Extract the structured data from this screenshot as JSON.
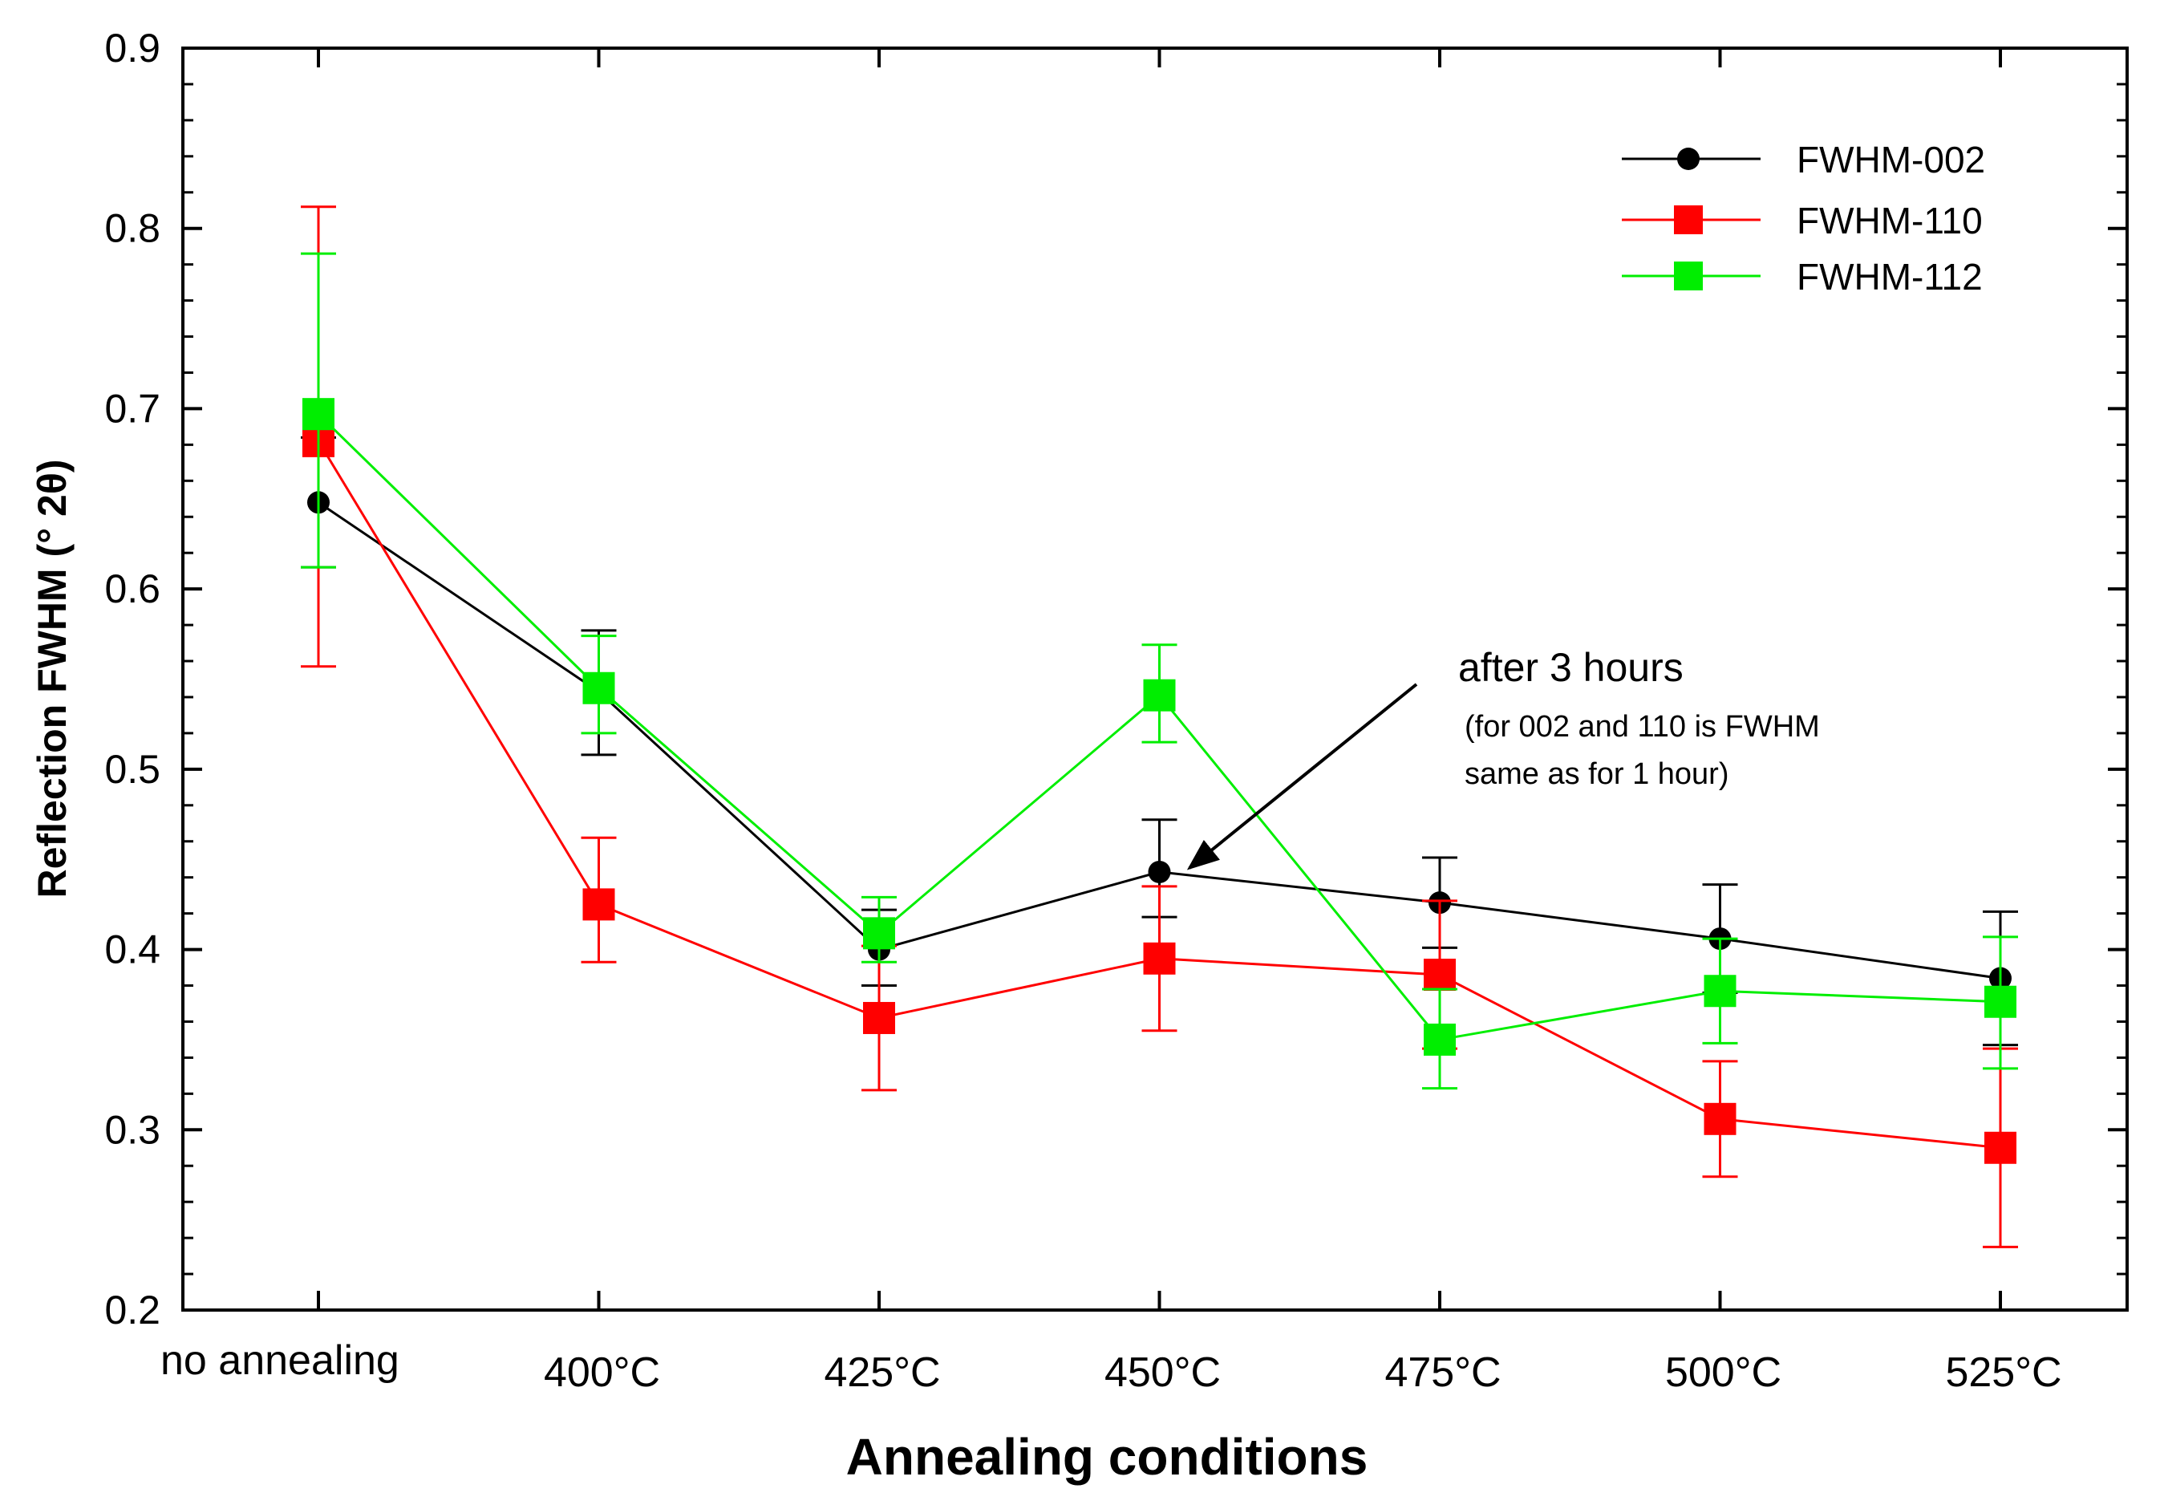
{
  "chart_data": {
    "type": "line",
    "xlabel": "Annealing conditions",
    "ylabel": "Reflection FWHM (° 2θ)",
    "ylim": [
      0.2,
      0.9
    ],
    "yticks": [
      "0.2",
      "0.3",
      "0.4",
      "0.5",
      "0.6",
      "0.7",
      "0.8",
      "0.9"
    ],
    "categories": [
      "no annealing",
      "400°C",
      "425°C",
      "450°C",
      "475°C",
      "500°C",
      "525°C"
    ],
    "legend_position": "top-right",
    "grid": false,
    "series": [
      {
        "name": "FWHM-002",
        "color": "#000000",
        "marker": "circle",
        "values": [
          0.648,
          0.543,
          0.4,
          0.443,
          0.426,
          0.406,
          0.384
        ],
        "err_low": [
          0.612,
          0.508,
          0.38,
          0.418,
          0.401,
          0.376,
          0.347
        ],
        "err_high": [
          0.684,
          0.577,
          0.422,
          0.472,
          0.451,
          0.436,
          0.421
        ]
      },
      {
        "name": "FWHM-110",
        "color": "#ff0000",
        "marker": "square",
        "values": [
          0.682,
          0.425,
          0.362,
          0.395,
          0.386,
          0.306,
          0.29
        ],
        "err_low": [
          0.557,
          0.393,
          0.322,
          0.355,
          0.345,
          0.274,
          0.235
        ],
        "err_high": [
          0.812,
          0.462,
          0.402,
          0.435,
          0.427,
          0.338,
          0.345
        ]
      },
      {
        "name": "FWHM-112",
        "color": "#00ee00",
        "marker": "square",
        "values": [
          0.697,
          0.545,
          0.409,
          0.541,
          0.35,
          0.377,
          0.371
        ],
        "err_low": [
          0.612,
          0.52,
          0.393,
          0.515,
          0.323,
          0.348,
          0.334
        ],
        "err_high": [
          0.786,
          0.574,
          0.429,
          0.569,
          0.378,
          0.406,
          0.407
        ]
      }
    ],
    "annotation": {
      "title": "after 3 hours",
      "lines": [
        "(for 002 and 110 is FWHM",
        "same as for 1 hour)"
      ],
      "points_to_category": "450°C",
      "points_to_value": 0.435
    }
  }
}
